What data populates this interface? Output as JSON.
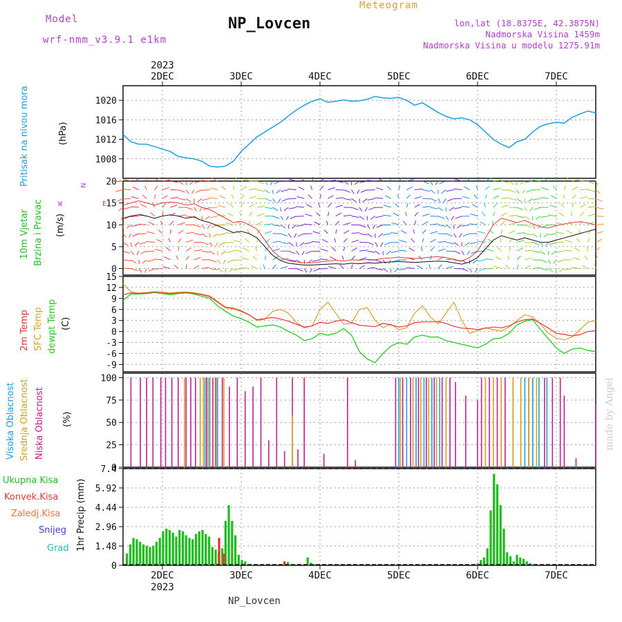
{
  "header": {
    "model_label": "Model",
    "model_value": "wrf-nmm_v3.9.1 e1km",
    "title": "NP_Lovcen",
    "subtitle": "Meteogram",
    "lonlat": "lon,lat (18.8375E, 42.3875N)",
    "elevation": "Nadmorska Visina 1459m",
    "model_elevation": "Nadmorska Visina u modelu 1275.91m",
    "footer_title": "NP_Lovcen",
    "credit": "made by Angel"
  },
  "colors": {
    "pressure": "#1aa0e0",
    "wind_label": "#22c022",
    "temp2m": "#ee3333",
    "sfc": "#dda030",
    "dew": "#22cc22",
    "high_cloud": "#1aa0e0",
    "mid_cloud": "#d4a020",
    "low_cloud": "#c0208a",
    "model": "#b040d0",
    "meteogram": "#e0a030",
    "rain_total": "#22bb22",
    "rain_conv": "#ee3333",
    "rain_frozen": "#ee7733",
    "snow": "#4040dd",
    "hail": "#22bbbb"
  },
  "chart_data": [
    {
      "type": "line",
      "name": "pressure",
      "ylabel_main": "Pritisak na nivou mora",
      "ylabel_unit": "(hPa)",
      "ylim": [
        1004,
        1023
      ],
      "yticks": [
        1008,
        1012,
        1016,
        1020
      ],
      "grid": true,
      "x": [
        1.5,
        1.6,
        1.7,
        1.8,
        1.9,
        2.0,
        2.1,
        2.2,
        2.3,
        2.4,
        2.5,
        2.6,
        2.7,
        2.8,
        2.9,
        3.0,
        3.1,
        3.2,
        3.3,
        3.4,
        3.5,
        3.6,
        3.7,
        3.8,
        3.9,
        4.0,
        4.1,
        4.2,
        4.3,
        4.4,
        4.5,
        4.6,
        4.7,
        4.8,
        4.9,
        5.0,
        5.1,
        5.2,
        5.3,
        5.4,
        5.5,
        5.6,
        5.7,
        5.8,
        5.9,
        6.0,
        6.1,
        6.2,
        6.3,
        6.4,
        6.5,
        6.6,
        6.7,
        6.8,
        6.9,
        7.0,
        7.1,
        7.2,
        7.3,
        7.4,
        7.5
      ],
      "values": [
        1013,
        1011.5,
        1011,
        1011,
        1010.5,
        1010,
        1009.5,
        1008.5,
        1008.2,
        1008,
        1007.5,
        1006.5,
        1006.3,
        1006.5,
        1007.5,
        1009.5,
        1011,
        1012.5,
        1013.5,
        1014.5,
        1015.5,
        1016.8,
        1018,
        1019,
        1019.8,
        1020.3,
        1019.6,
        1019.8,
        1020.1,
        1019.8,
        1019.9,
        1020.2,
        1020.8,
        1020.5,
        1020.4,
        1020.6,
        1020,
        1019,
        1019.5,
        1018.5,
        1017.5,
        1016.7,
        1016.2,
        1016.4,
        1016,
        1015,
        1013.5,
        1012,
        1011,
        1010.3,
        1011.5,
        1012,
        1013.5,
        1014.7,
        1015.2,
        1015.5,
        1015.3,
        1016.5,
        1017.2,
        1017.8,
        1017.4
      ]
    },
    {
      "type": "line",
      "name": "wind",
      "ylabel_main": "10m Vjetar",
      "ylabel_main2": "Brzina i Pravac",
      "ylabel_unit": "(m/s)",
      "compass": "N",
      "compass_w": "W",
      "compass_e": "E",
      "ylim": [
        -1.5,
        20
      ],
      "yticks": [
        0,
        5,
        10,
        15,
        20
      ],
      "grid": true,
      "x": [
        1.5,
        1.6,
        1.7,
        1.8,
        1.9,
        2.0,
        2.1,
        2.2,
        2.3,
        2.4,
        2.5,
        2.6,
        2.7,
        2.8,
        2.9,
        3.0,
        3.1,
        3.2,
        3.3,
        3.4,
        3.5,
        3.6,
        3.7,
        3.8,
        3.9,
        4.0,
        4.1,
        4.2,
        4.3,
        4.4,
        4.5,
        4.6,
        4.7,
        4.8,
        4.9,
        5.0,
        5.1,
        5.2,
        5.3,
        5.4,
        5.5,
        5.6,
        5.7,
        5.8,
        5.9,
        6.0,
        6.1,
        6.2,
        6.3,
        6.4,
        6.5,
        6.6,
        6.7,
        6.8,
        6.9,
        7.0,
        7.1,
        7.2,
        7.3,
        7.4,
        7.5
      ],
      "speed": [
        11.5,
        12,
        12.3,
        12,
        11.5,
        12,
        12.3,
        12,
        11.5,
        11.8,
        11,
        10.5,
        9.8,
        9,
        8.2,
        8.5,
        8,
        7,
        5,
        3,
        1.8,
        1.2,
        1,
        0.8,
        0.8,
        0.9,
        1,
        1.1,
        1,
        1.2,
        1.1,
        1.3,
        1.2,
        1.4,
        1.5,
        1.6,
        1.5,
        1.4,
        1.5,
        1.6,
        1.7,
        1.6,
        1.3,
        1,
        1.5,
        2.5,
        4.5,
        6.5,
        7.5,
        7,
        6.5,
        7,
        6.5,
        6,
        6,
        6.5,
        7,
        7.5,
        8,
        8.5,
        9
      ],
      "gust": [
        14.5,
        15,
        15.5,
        15,
        14.5,
        15,
        15.2,
        15,
        14.5,
        14.8,
        14,
        13.5,
        12.5,
        11.5,
        10.5,
        10.8,
        10,
        9,
        6.5,
        4,
        2.5,
        1.8,
        1.5,
        1.3,
        1.3,
        1.5,
        1.7,
        1.9,
        1.7,
        2,
        1.9,
        2.1,
        2,
        2.3,
        2.4,
        2.6,
        2.4,
        2.3,
        2.4,
        2.6,
        2.7,
        2.5,
        2.1,
        1.7,
        2.5,
        4,
        7,
        10,
        11.5,
        11,
        10.5,
        11,
        10.2,
        9.5,
        9.3,
        9.8,
        10.2,
        10.5,
        10.7,
        10.4,
        10
      ]
    },
    {
      "type": "line",
      "name": "temperature",
      "ylabel_a": "2m Temp",
      "ylabel_b": "SFC Temp",
      "ylabel_c": "dewpt Temp",
      "ylabel_unit": "(C)",
      "ylim": [
        -11,
        15
      ],
      "yticks": [
        -9,
        -6,
        -3,
        0,
        3,
        6,
        9,
        12,
        15
      ],
      "grid": true,
      "x": [
        1.5,
        1.6,
        1.7,
        1.8,
        1.9,
        2.0,
        2.1,
        2.2,
        2.3,
        2.4,
        2.5,
        2.6,
        2.7,
        2.8,
        2.9,
        3.0,
        3.1,
        3.2,
        3.3,
        3.4,
        3.5,
        3.6,
        3.7,
        3.8,
        3.9,
        4.0,
        4.1,
        4.2,
        4.3,
        4.4,
        4.5,
        4.6,
        4.7,
        4.8,
        4.9,
        5.0,
        5.1,
        5.2,
        5.3,
        5.4,
        5.5,
        5.6,
        5.7,
        5.8,
        5.9,
        6.0,
        6.1,
        6.2,
        6.3,
        6.4,
        6.5,
        6.6,
        6.7,
        6.8,
        6.9,
        7.0,
        7.1,
        7.2,
        7.3,
        7.4,
        7.5
      ],
      "t2m": [
        10,
        10.5,
        10.3,
        10.5,
        10.7,
        10.5,
        10.3,
        10.5,
        10.6,
        10.4,
        10,
        9.5,
        8,
        6.5,
        6.2,
        5.5,
        4.5,
        3.2,
        3.5,
        3.8,
        3.4,
        2.8,
        2,
        1.2,
        1.5,
        2.5,
        2.2,
        2.8,
        3.2,
        2.4,
        1.7,
        1.5,
        1.3,
        2.2,
        1.8,
        1.2,
        1.5,
        2.4,
        2.6,
        2.6,
        2.7,
        2.2,
        1.4,
        0.9,
        0.8,
        0.5,
        0.9,
        1.2,
        1.0,
        1.5,
        2.6,
        3.2,
        3.4,
        2.2,
        0.9,
        -0.5,
        -0.8,
        -1.2,
        -0.9,
        0,
        0.2
      ],
      "sfc": [
        13,
        10.8,
        10.5,
        10.6,
        10.9,
        10.8,
        10.5,
        10.7,
        10.8,
        10.6,
        10.2,
        9.7,
        8.2,
        6.7,
        6.4,
        5.7,
        4.6,
        3,
        3.3,
        5.5,
        6,
        5,
        2.5,
        1,
        1.5,
        6,
        8,
        5,
        2,
        2.2,
        6,
        6.5,
        3,
        1,
        2,
        0.5,
        1,
        5,
        7,
        4,
        2,
        5,
        8,
        3,
        -0.5,
        0.2,
        1,
        0.5,
        0.1,
        1.2,
        3,
        4.5,
        4,
        2,
        -0.5,
        -1.8,
        -2.3,
        -1.5,
        0.5,
        2.5,
        3
      ],
      "dew": [
        8.5,
        10.2,
        10.2,
        10.3,
        10.6,
        10.3,
        10,
        10.3,
        10.5,
        10.2,
        9.6,
        9,
        7,
        5.5,
        4.2,
        3.5,
        2.5,
        1.2,
        1.5,
        1.8,
        1.2,
        0,
        -1,
        -2.5,
        -2,
        -0.5,
        -1,
        -0.5,
        0.8,
        -1,
        -5.5,
        -7.5,
        -8.5,
        -6,
        -4,
        -3,
        -3.5,
        -1.5,
        -1,
        -1.5,
        -1.5,
        -2.5,
        -3,
        -3.5,
        -4,
        -4.5,
        -3.5,
        -2,
        -1.8,
        -0.5,
        1.8,
        2.8,
        3.2,
        0.5,
        -2,
        -4.5,
        -6,
        -4.8,
        -4.5,
        -5.2,
        -5.5
      ]
    },
    {
      "type": "bar",
      "name": "clouds",
      "ylabel_a": "Visoka Oblacnost",
      "ylabel_b": "Srednja Oblacnost",
      "ylabel_c": "Niska Oblacnost",
      "ylabel_unit": "(%)",
      "ylim": [
        0,
        105
      ],
      "yticks": [
        0,
        25,
        50,
        75,
        100
      ],
      "grid": true,
      "low_x": [
        1.6,
        1.72,
        1.8,
        1.88,
        1.98,
        2.04,
        2.12,
        2.2,
        2.3,
        2.36,
        2.42,
        2.48,
        2.56,
        2.6,
        2.64,
        2.68,
        2.76,
        2.85,
        2.95,
        3.05,
        3.15,
        3.25,
        3.35,
        3.45,
        3.55,
        3.65,
        3.72,
        3.8,
        4.05,
        4.35,
        4.45,
        4.96,
        5.05,
        5.15,
        5.25,
        5.35,
        5.45,
        5.55,
        5.65,
        5.72,
        5.85,
        6.0,
        6.05,
        6.15,
        6.25,
        6.35,
        6.45,
        6.55,
        6.65,
        6.7,
        6.85,
        6.95,
        7.05,
        7.1,
        7.25,
        7.5
      ],
      "low_v": [
        100,
        100,
        100,
        100,
        100,
        100,
        100,
        100,
        100,
        100,
        100,
        100,
        100,
        100,
        100,
        100,
        100,
        90,
        100,
        85,
        90,
        100,
        30,
        100,
        18,
        100,
        20,
        100,
        15,
        100,
        8,
        100,
        100,
        100,
        100,
        100,
        100,
        100,
        100,
        95,
        80,
        75,
        100,
        100,
        100,
        100,
        100,
        100,
        100,
        100,
        100,
        100,
        100,
        80,
        10,
        70
      ],
      "mid_x": [
        2.28,
        2.48,
        2.52,
        2.58,
        2.67,
        2.78,
        3.65,
        5.02,
        5.18,
        5.28,
        5.38,
        5.48,
        5.6,
        6.1,
        6.2,
        6.3,
        6.45,
        6.55,
        6.65,
        6.75
      ],
      "mid_v": [
        100,
        100,
        100,
        100,
        100,
        100,
        58,
        100,
        100,
        100,
        100,
        100,
        100,
        100,
        100,
        100,
        100,
        100,
        100,
        100
      ],
      "high_x": [
        2.54,
        2.6,
        2.7,
        5.0,
        5.1,
        5.22,
        5.32,
        5.42,
        5.52,
        6.6,
        6.7,
        6.78,
        6.88
      ],
      "high_v": [
        100,
        100,
        100,
        100,
        100,
        100,
        100,
        100,
        100,
        100,
        100,
        100,
        100
      ]
    },
    {
      "type": "bar",
      "name": "precip",
      "legend": [
        "Ukupna Kisa",
        "Konvek.Kisa",
        "Zaledj.Kisa",
        "Snijeg",
        "Grad"
      ],
      "ylabel_unit": "1hr Precip (mm)",
      "ylim": [
        0,
        7.4
      ],
      "yticks": [
        0,
        1.48,
        2.96,
        4.44,
        5.92,
        7.4
      ],
      "ytick_labels": [
        "0",
        "1.48",
        "2.96",
        "4.44",
        "5.92",
        "7.4"
      ],
      "grid": true,
      "x_start": 1.55,
      "x_step": 0.0417,
      "total": [
        0.9,
        1.6,
        2.1,
        2.0,
        1.8,
        1.6,
        1.5,
        1.4,
        1.5,
        1.8,
        2.1,
        2.6,
        2.8,
        2.7,
        2.5,
        2.2,
        2.7,
        2.6,
        2.3,
        2.1,
        2.0,
        2.4,
        2.6,
        2.7,
        2.4,
        2.2,
        1.4,
        1.2,
        1.0,
        1.3,
        3.4,
        4.6,
        3.4,
        2.3,
        0.8,
        0.4,
        0.3,
        0.1,
        0.05,
        0,
        0,
        0,
        0,
        0,
        0,
        0,
        0,
        0,
        0,
        0.25,
        0.1,
        0,
        0,
        0,
        0,
        0.6,
        0.2,
        0.1
      ],
      "total_offset": 0,
      "conv_x": [
        2.72,
        2.78,
        3.55
      ],
      "conv_v": [
        2.1,
        0.9,
        0.3
      ],
      "total2_start": 6.0,
      "total2": [
        0.15,
        0.4,
        0.6,
        1.3,
        4.2,
        7.0,
        6.2,
        4.6,
        2.8,
        1.0,
        0.7,
        0.3,
        0.8,
        0.6,
        0.5,
        0.3,
        0.15,
        0.1
      ]
    }
  ],
  "xaxis": {
    "top_year": "2023",
    "bottom_year": "2023",
    "ticks": [
      "2DEC",
      "3DEC",
      "4DEC",
      "5DEC",
      "6DEC",
      "7DEC"
    ],
    "tick_x": [
      2,
      3,
      4,
      5,
      6,
      7
    ],
    "xlim": [
      1.5,
      7.5
    ]
  }
}
